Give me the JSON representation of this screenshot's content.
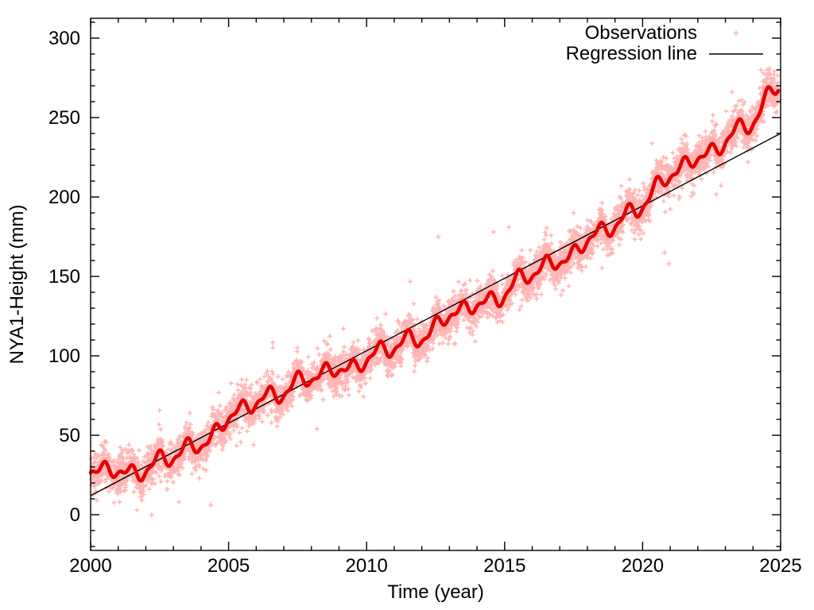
{
  "window": {
    "background": "#ffffff"
  },
  "chart_data": {
    "type": "scatter",
    "title": "",
    "xlabel": "Time (year)",
    "ylabel": "NYA1-Height (mm)",
    "x_domain": [
      2000,
      2025
    ],
    "y_domain": [
      -22.5,
      312.5
    ],
    "x_major_ticks": [
      2000,
      2005,
      2010,
      2015,
      2020,
      2025
    ],
    "x_minor_step": 1,
    "y_major_ticks": [
      0,
      50,
      100,
      150,
      200,
      250,
      300
    ],
    "y_minor_step": 10,
    "axis_color": "#000000",
    "grid": "off",
    "legend_position": "top-right-inside",
    "legend": [
      {
        "label": "Observations",
        "type": "point",
        "color": "#ffb5b5"
      },
      {
        "label": "Regression line",
        "type": "line",
        "color": "#000000"
      }
    ],
    "series": {
      "observations": {
        "name": "Observations",
        "marker": "plus",
        "color": "#ffb5b5",
        "t_start": 2000.0,
        "t_end": 2024.92,
        "points_per_year": 260,
        "noise_sigma": 5.5,
        "tail_fraction": 0.06,
        "tail_sigma": 11,
        "seed": 42,
        "outliers": [
          [
            2001.05,
            8
          ],
          [
            2003.2,
            8
          ],
          [
            2004.35,
            6
          ],
          [
            2005.9,
            44
          ],
          [
            2008.2,
            54
          ],
          [
            2012.6,
            175
          ],
          [
            2014.6,
            178
          ],
          [
            2015.15,
            181
          ],
          [
            2017.5,
            190
          ],
          [
            2020.8,
            165
          ],
          [
            2020.95,
            158
          ]
        ]
      },
      "regression": {
        "name": "Regression line",
        "color": "#000000",
        "x": [
          2000,
          2025
        ],
        "y": [
          12,
          240
        ]
      },
      "smoothed": {
        "name": "Smoothed observations",
        "color": "#e60000",
        "width": 4.6,
        "annual_means": [
          27,
          27,
          30,
          36,
          46,
          60,
          70,
          80,
          85,
          92,
          98,
          105,
          114,
          124,
          132,
          141,
          151,
          161,
          172,
          182,
          198,
          212,
          225,
          236,
          247,
          274
        ],
        "seasonal": [
          {
            "amp": 4.2,
            "period": 1,
            "phase": -1.26
          },
          {
            "amp": 2.2,
            "period": 0.5,
            "phase": 1.1
          },
          {
            "amp": 2.0,
            "period": 2.6,
            "phase": 0.7
          },
          {
            "amp": 1.5,
            "period": 1.31,
            "phase": 2.9
          }
        ]
      }
    }
  }
}
